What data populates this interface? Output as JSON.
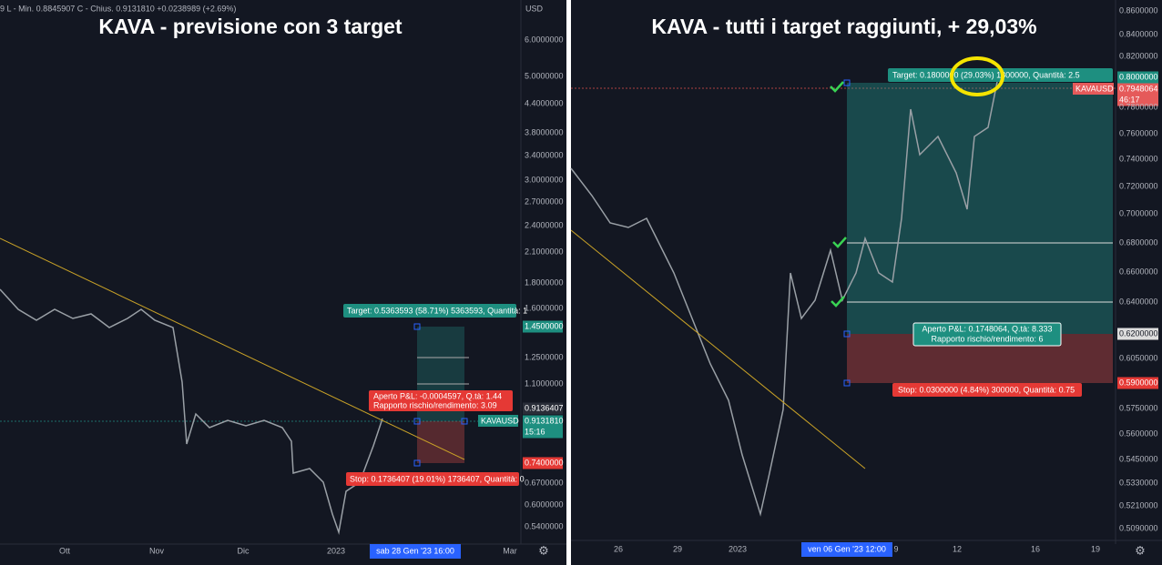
{
  "left": {
    "title": "KAVA - previsione con 3 target",
    "header": "9 L - Min. 0.8845907 C - Chius. 0.9131810 +0.0238989 (+2.69%)",
    "currency": "USD",
    "symbol": "KAVAUSD",
    "price_axis": [
      "6.0000000",
      "5.0000000",
      "4.4000000",
      "3.8000000",
      "3.4000000",
      "3.0000000",
      "2.7000000",
      "2.4000000",
      "2.1000000",
      "1.8000000",
      "1.6000000",
      "1.4500000",
      "1.2500000",
      "1.1000000",
      "0.9136407",
      "0.9131810",
      "15:16",
      "0.7400000",
      "0.6700000",
      "0.6000000",
      "0.5400000"
    ],
    "time_axis": [
      "Ott",
      "Nov",
      "Dic",
      "2023",
      "sab 28 Gen '23  16:00",
      "Mar"
    ],
    "target": "Target: 0.5363593 (58.71%) 5363593, Quantità: 1",
    "pnl": "Aperto P&L: -0.0004597, Q.tà: 1.44",
    "ratio": "Rapporto rischio/rendimento: 3.09",
    "stop": "Stop: 0.1736407 (19.01%) 1736407, Quantità: 0"
  },
  "right": {
    "title": "KAVA - tutti i target raggiunti, + 29,03%",
    "symbol": "KAVAUSD",
    "price_axis": [
      "0.8600000",
      "0.8400000",
      "0.8200000",
      "0.8000000",
      "0.7948064",
      "46:17",
      "0.7800000",
      "0.7600000",
      "0.7400000",
      "0.7200000",
      "0.7000000",
      "0.6800000",
      "0.6600000",
      "0.6400000",
      "0.6200000",
      "0.6050000",
      "0.5900000",
      "0.5750000",
      "0.5600000",
      "0.5450000",
      "0.5330000",
      "0.5210000",
      "0.5090000"
    ],
    "time_axis": [
      "26",
      "29",
      "2023",
      "ven 06 Gen '23  12:00",
      "9",
      "12",
      "16",
      "19"
    ],
    "target": "Target: 0.1800000 (29.03%) 1800000, Quantità: 2.5",
    "pnl": "Aperto P&L: 0.1748064, Q.tà: 8.333",
    "ratio": "Rapporto rischio/rendimento: 6",
    "stop": "Stop: 0.0300000 (4.84%) 300000, Quantità: 0.75"
  }
}
